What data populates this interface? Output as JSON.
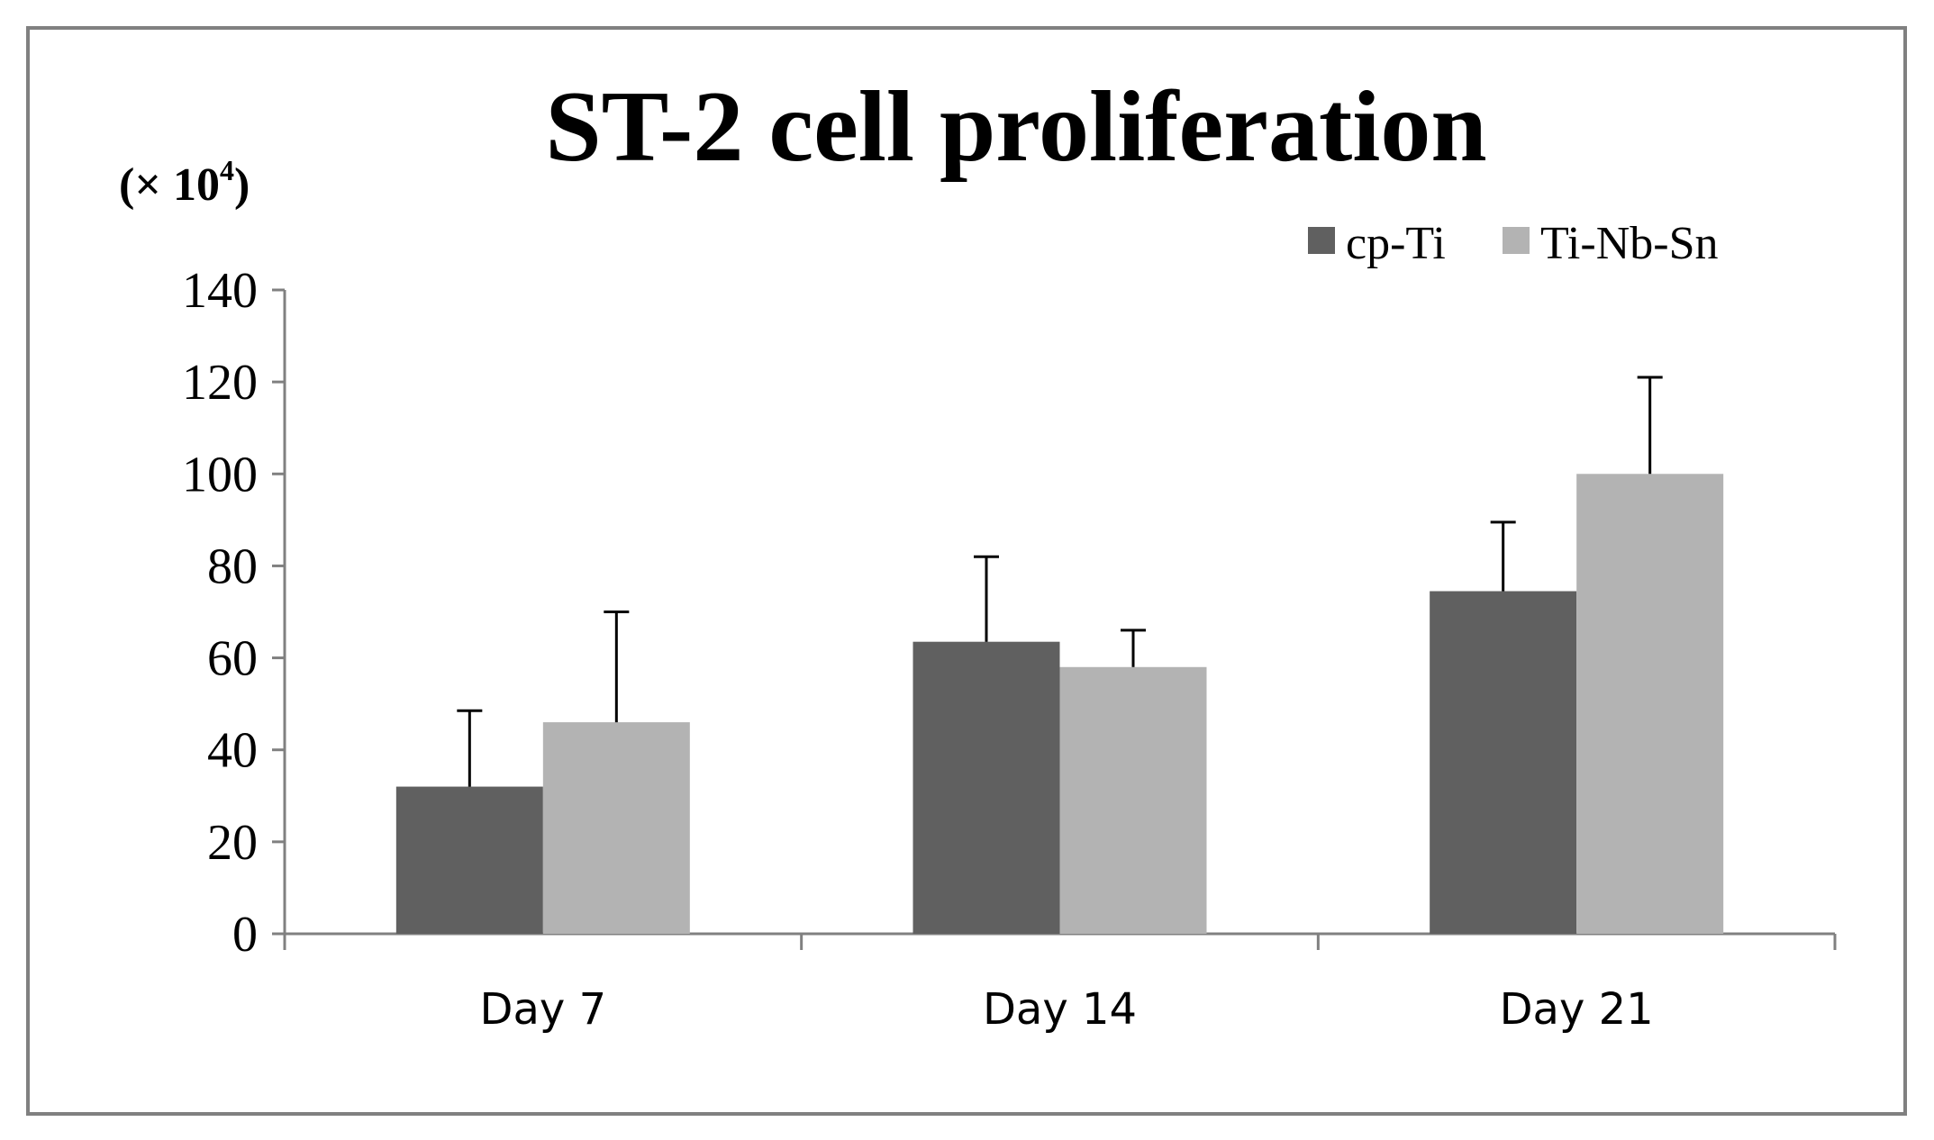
{
  "chart_data": {
    "type": "bar",
    "title": "ST-2 cell proliferation",
    "unit_label_prefix": "(× 10",
    "unit_label_exponent": "4",
    "unit_label_suffix": ")",
    "xlabel": "",
    "ylabel": "",
    "categories": [
      "Day 7",
      "Day 14",
      "Day 21"
    ],
    "series": [
      {
        "name": "cp-Ti",
        "color": "#606060",
        "values": [
          32,
          63.5,
          74.5
        ],
        "error": [
          16.5,
          18.5,
          15
        ]
      },
      {
        "name": "Ti-Nb-Sn",
        "color": "#b3b3b3",
        "values": [
          46,
          58,
          100
        ],
        "error": [
          24,
          8,
          21
        ]
      }
    ],
    "ylim": [
      0,
      140
    ],
    "yticks": [
      "0",
      "20",
      "40",
      "60",
      "80",
      "100",
      "120",
      "140"
    ],
    "grid": false,
    "legend_position": "top-right"
  }
}
